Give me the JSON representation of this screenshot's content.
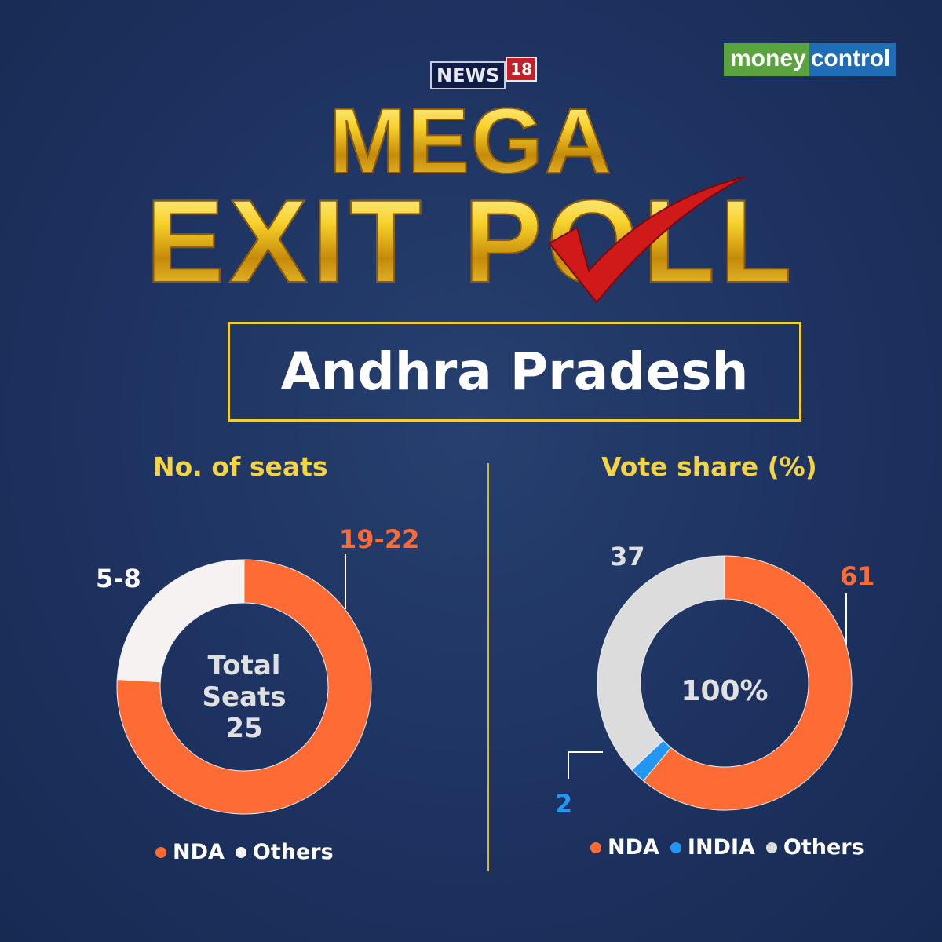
{
  "branding": {
    "news18_text": "NEWS",
    "news18_number": "18",
    "moneycontrol_part1": "money",
    "moneycontrol_part2": "control"
  },
  "title": {
    "line1": "MEGA",
    "line2": "EXIT POLL"
  },
  "state": "Andhra Pradesh",
  "colors": {
    "background": "#1d3260",
    "NDA": "#ff6b35",
    "INDIA": "#2196f3",
    "Others_seats": "#f7f2f2",
    "Others_vote": "#dcdcdc",
    "heading": "#f5d443"
  },
  "chart_data": [
    {
      "type": "pie",
      "variant": "donut",
      "title": "No. of seats",
      "center_label": [
        "Total",
        "Seats",
        "25"
      ],
      "categories": [
        "NDA",
        "Others"
      ],
      "values": [
        [
          19,
          22
        ],
        [
          5,
          8
        ]
      ],
      "data_labels": [
        "19-22",
        "5-8"
      ],
      "legend": [
        "NDA",
        "Others"
      ],
      "legend_position": "bottom"
    },
    {
      "type": "pie",
      "variant": "donut",
      "title": "Vote share (%)",
      "center_label": [
        "100%"
      ],
      "categories": [
        "NDA",
        "INDIA",
        "Others"
      ],
      "values": [
        61,
        2,
        37
      ],
      "data_labels": [
        "61",
        "2",
        "37"
      ],
      "legend": [
        "NDA",
        "INDIA",
        "Others"
      ],
      "legend_position": "bottom"
    }
  ]
}
